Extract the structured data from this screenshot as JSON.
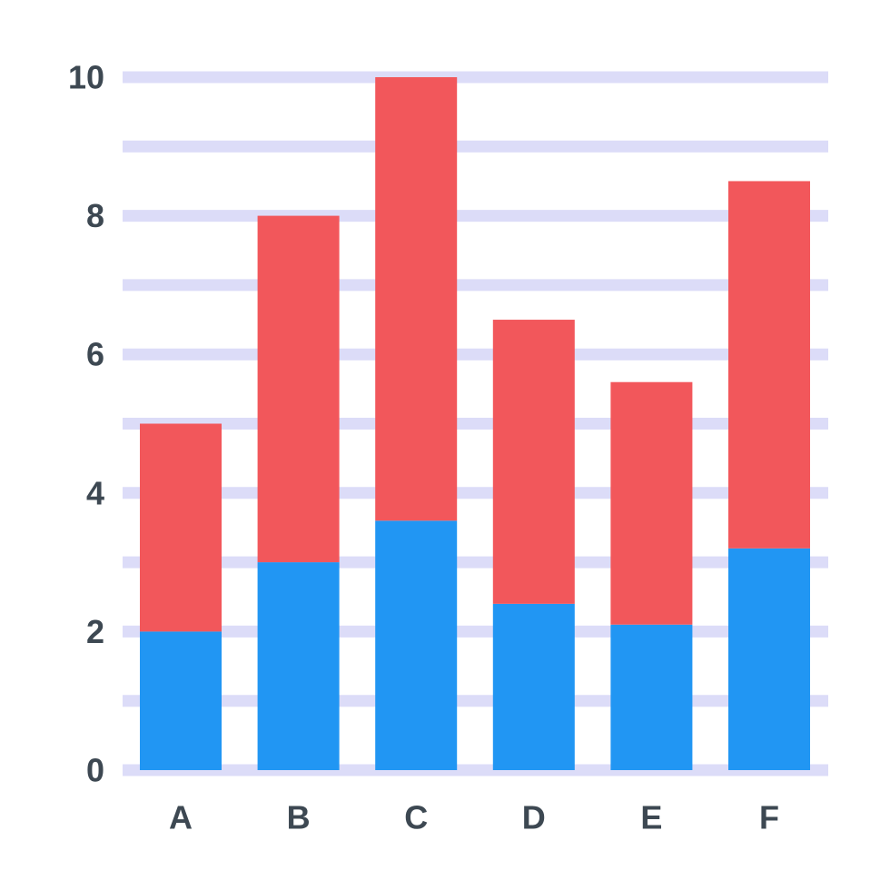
{
  "chart_data": {
    "type": "bar",
    "stacked": true,
    "categories": [
      "A",
      "B",
      "C",
      "D",
      "E",
      "F"
    ],
    "series": [
      {
        "color": "#2196f3",
        "values": [
          2.0,
          3.0,
          3.6,
          2.4,
          2.1,
          3.2
        ]
      },
      {
        "color": "#f2575b",
        "values": [
          3.0,
          5.0,
          6.4,
          4.1,
          3.5,
          5.3
        ]
      }
    ],
    "ylim": [
      0,
      10
    ],
    "yticks": [
      "0",
      "2",
      "4",
      "6",
      "8",
      "10"
    ],
    "grid": true,
    "grid_color": "#dcdcf8",
    "label_color": "#3d4852"
  }
}
